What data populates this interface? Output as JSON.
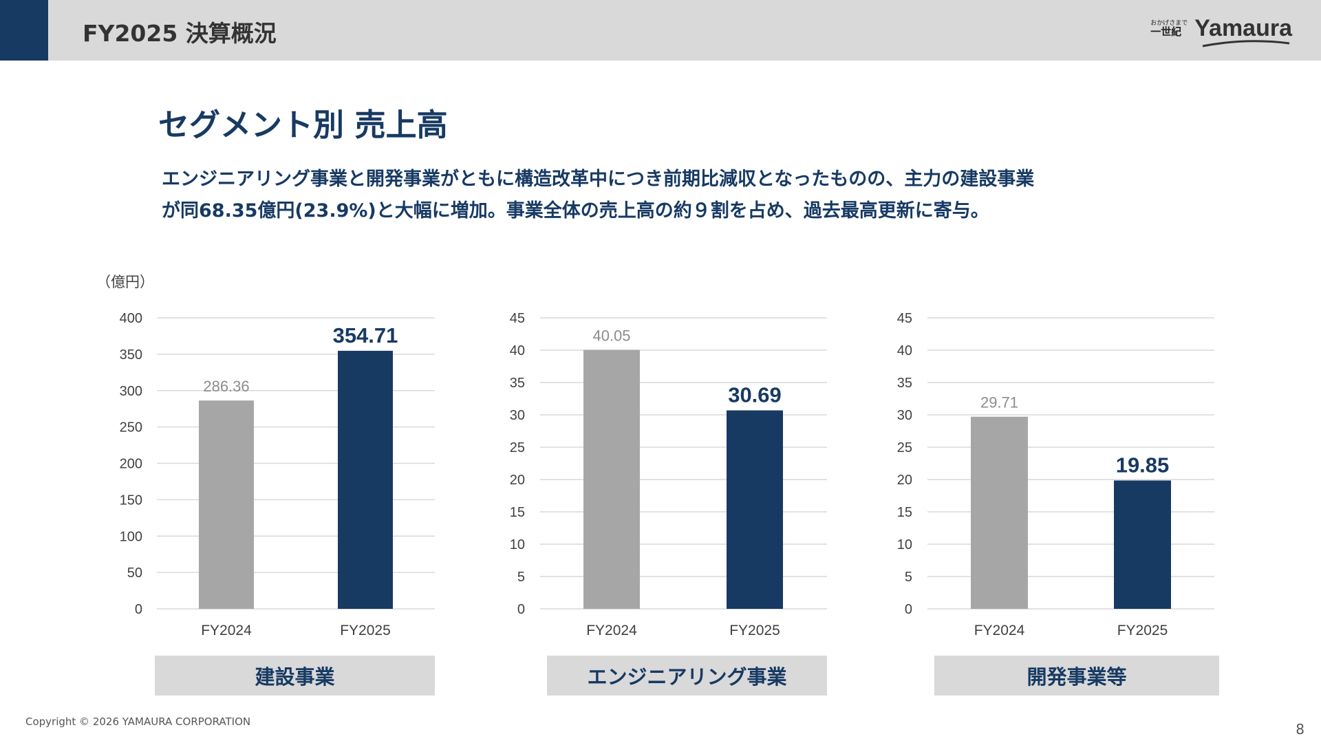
{
  "header": {
    "title": "FY2025 決算概況"
  },
  "logo": {
    "tagline_small": "おかげさまで",
    "tagline_big": "一世紀",
    "wordmark": "Yamaura"
  },
  "section_title": "セグメント別 売上高",
  "summary_lines": [
    "エンジニアリング事業と開発事業がともに構造改革中につき前期比減収となったものの、主力の建設事業",
    "が同68.35億円(23.9%)と大幅に増加。事業全体の売上高の約９割を占め、過去最高更新に寄与。"
  ],
  "unit_label": "（億円）",
  "colors": {
    "accent": "#173a63",
    "prior": "#a6a6a6",
    "label_bg": "#d9d9d9",
    "grid": "#d9d9d9"
  },
  "chart_data": [
    {
      "type": "bar",
      "segment": "建設事業",
      "categories": [
        "FY2024",
        "FY2025"
      ],
      "values": [
        286.36,
        354.71
      ],
      "value_labels": [
        "286.36",
        "354.71"
      ],
      "ylim": [
        0,
        400
      ],
      "yticks": [
        0,
        50,
        100,
        150,
        200,
        250,
        300,
        350,
        400
      ],
      "grid": true
    },
    {
      "type": "bar",
      "segment": "エンジニアリング事業",
      "categories": [
        "FY2024",
        "FY2025"
      ],
      "values": [
        40.05,
        30.69
      ],
      "value_labels": [
        "40.05",
        "30.69"
      ],
      "ylim": [
        0,
        45
      ],
      "yticks": [
        0,
        5,
        10,
        15,
        20,
        25,
        30,
        35,
        40,
        45
      ],
      "grid": true
    },
    {
      "type": "bar",
      "segment": "開発事業等",
      "categories": [
        "FY2024",
        "FY2025"
      ],
      "values": [
        29.71,
        19.85
      ],
      "value_labels": [
        "29.71",
        "19.85"
      ],
      "ylim": [
        0,
        45
      ],
      "yticks": [
        0,
        5,
        10,
        15,
        20,
        25,
        30,
        35,
        40,
        45
      ],
      "grid": true
    }
  ],
  "footer": {
    "copyright": "Copyright © 2026 YAMAURA CORPORATION",
    "page": "8"
  }
}
